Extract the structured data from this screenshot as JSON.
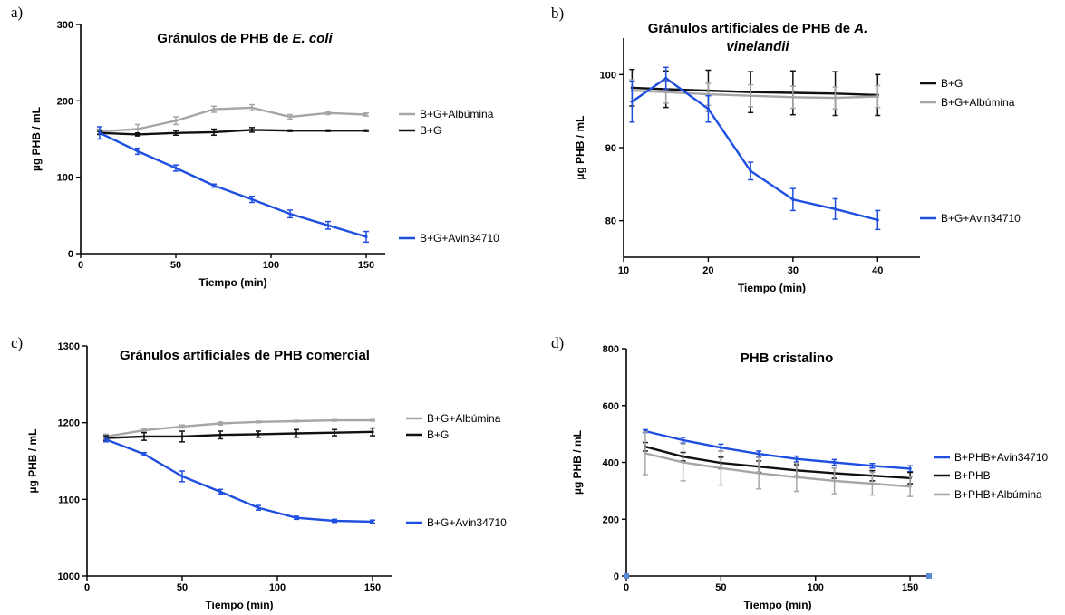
{
  "colors": {
    "black": "#111111",
    "gray": "#a6a6a6",
    "blue": "#1f4fe0"
  },
  "chart_data": [
    {
      "panel": "a)",
      "type": "line",
      "title": "Gránulos de PHB de E. coli",
      "title_parts": [
        "Gránulos de PHB de ",
        "E. coli"
      ],
      "xlabel": "Tiempo (min)",
      "ylabel": "µg PHB / mL",
      "xlim": [
        0,
        160
      ],
      "ylim": [
        0,
        300
      ],
      "xticks": [
        0,
        50,
        100,
        150
      ],
      "yticks": [
        0,
        100,
        200,
        300
      ],
      "grid": false,
      "legend_position": "right",
      "series": [
        {
          "name": "B+G+Albúmina",
          "color": "#a6a6a6",
          "x": [
            10,
            30,
            50,
            70,
            90,
            110,
            130,
            150
          ],
          "y": [
            160,
            163,
            174,
            189,
            191,
            179,
            184,
            182
          ],
          "err": [
            3,
            6,
            5,
            4,
            4,
            3,
            2,
            2
          ]
        },
        {
          "name": "B+G",
          "color": "#111111",
          "x": [
            10,
            30,
            50,
            70,
            90,
            110,
            130,
            150
          ],
          "y": [
            158,
            156,
            158,
            159,
            162,
            161,
            161,
            161
          ],
          "err": [
            2,
            2,
            3,
            4,
            3,
            1,
            1,
            1
          ]
        },
        {
          "name": "B+G+Avin34710",
          "color": "#1f4fe0",
          "x": [
            10,
            30,
            50,
            70,
            90,
            110,
            130,
            150
          ],
          "y": [
            158,
            134,
            112,
            89,
            71,
            52,
            37,
            22
          ],
          "err": [
            8,
            4,
            4,
            2,
            4,
            5,
            5,
            7
          ]
        }
      ]
    },
    {
      "panel": "b)",
      "type": "line",
      "title": "Gránulos artificiales de PHB de A. vinelandii",
      "title_parts": [
        "Gránulos artificiales de PHB de ",
        "A.",
        "vinelandii"
      ],
      "xlabel": "Tiempo (min)",
      "ylabel": "µg PHB / mL",
      "xlim": [
        10,
        45
      ],
      "ylim": [
        75,
        105
      ],
      "xticks": [
        10,
        20,
        30,
        40
      ],
      "yticks": [
        80,
        90,
        100
      ],
      "grid": false,
      "legend_position": "right",
      "series": [
        {
          "name": "B+G",
          "color": "#111111",
          "x": [
            11,
            15,
            20,
            25,
            30,
            35,
            40
          ],
          "y": [
            98.2,
            98.0,
            97.8,
            97.6,
            97.5,
            97.4,
            97.2
          ],
          "err": [
            2.5,
            2.5,
            2.8,
            2.8,
            3.0,
            3.0,
            2.8
          ]
        },
        {
          "name": "B+G+Albúmina",
          "color": "#a6a6a6",
          "x": [
            11,
            15,
            20,
            25,
            30,
            35,
            40
          ],
          "y": [
            97.8,
            97.6,
            97.3,
            97.1,
            96.9,
            96.8,
            97.0
          ],
          "err": [
            1.5,
            1.5,
            1.5,
            1.5,
            1.5,
            1.5,
            1.5
          ]
        },
        {
          "name": "B+G+Avin34710",
          "color": "#1f4fe0",
          "x": [
            11,
            15,
            20,
            25,
            30,
            35,
            40
          ],
          "y": [
            96.3,
            99.5,
            95.3,
            86.8,
            82.9,
            81.6,
            80.1
          ],
          "err": [
            2.8,
            1.5,
            1.8,
            1.2,
            1.5,
            1.4,
            1.3
          ]
        }
      ]
    },
    {
      "panel": "c)",
      "type": "line",
      "title": "Gránulos artificiales de PHB comercial",
      "title_parts": [
        "Gránulos artificiales de PHB comercial"
      ],
      "xlabel": "Tiempo (min)",
      "ylabel": "µg PHB / mL",
      "xlim": [
        0,
        160
      ],
      "ylim": [
        1000,
        1300
      ],
      "xticks": [
        0,
        50,
        100,
        150
      ],
      "yticks": [
        1000,
        1100,
        1200,
        1300
      ],
      "grid": false,
      "legend_position": "right",
      "series": [
        {
          "name": "B+G+Albúmina",
          "color": "#a6a6a6",
          "x": [
            10,
            30,
            50,
            70,
            90,
            110,
            130,
            150
          ],
          "y": [
            1182,
            1190,
            1195,
            1199,
            1201,
            1202,
            1203,
            1203
          ],
          "err": [
            3,
            2,
            2,
            2,
            1,
            1,
            1,
            1
          ]
        },
        {
          "name": "B+G",
          "color": "#111111",
          "x": [
            10,
            30,
            50,
            70,
            90,
            110,
            130,
            150
          ],
          "y": [
            1180,
            1182,
            1182,
            1184,
            1185,
            1186,
            1187,
            1188
          ],
          "err": [
            3,
            5,
            7,
            5,
            4,
            5,
            4,
            5
          ]
        },
        {
          "name": "B+G+Avin34710",
          "color": "#1f4fe0",
          "x": [
            10,
            30,
            50,
            70,
            90,
            110,
            130,
            150
          ],
          "y": [
            1178,
            1159,
            1130,
            1110,
            1089,
            1076,
            1072,
            1071
          ],
          "err": [
            3,
            2,
            7,
            3,
            3,
            2,
            2,
            2
          ]
        }
      ]
    },
    {
      "panel": "d)",
      "type": "line",
      "title": "PHB cristalino",
      "title_parts": [
        "PHB cristalino"
      ],
      "xlabel": "Tiempo (min)",
      "ylabel": "µg PHB / mL",
      "xlim": [
        0,
        160
      ],
      "ylim": [
        0,
        800
      ],
      "xticks": [
        0,
        50,
        100,
        150
      ],
      "yticks": [
        0,
        200,
        400,
        600,
        800
      ],
      "grid": false,
      "legend_position": "right",
      "series": [
        {
          "name": "B+PHB+Avin34710",
          "color": "#1f4fe0",
          "x": [
            10,
            30,
            50,
            70,
            90,
            110,
            130,
            150
          ],
          "y": [
            510,
            478,
            452,
            430,
            412,
            400,
            388,
            378
          ],
          "err": [
            5,
            10,
            12,
            10,
            10,
            10,
            8,
            10
          ]
        },
        {
          "name": "B+PHB",
          "color": "#111111",
          "x": [
            10,
            30,
            50,
            70,
            90,
            110,
            130,
            150
          ],
          "y": [
            455,
            420,
            398,
            385,
            372,
            362,
            353,
            345
          ],
          "err": [
            15,
            15,
            20,
            20,
            20,
            18,
            18,
            20
          ]
        },
        {
          "name": "B+PHB+Albúmina",
          "color": "#a6a6a6",
          "x": [
            10,
            30,
            50,
            70,
            90,
            110,
            130,
            150
          ],
          "y": [
            432,
            400,
            380,
            362,
            348,
            335,
            325,
            315
          ],
          "err": [
            75,
            65,
            60,
            55,
            50,
            45,
            40,
            35
          ]
        }
      ]
    }
  ]
}
